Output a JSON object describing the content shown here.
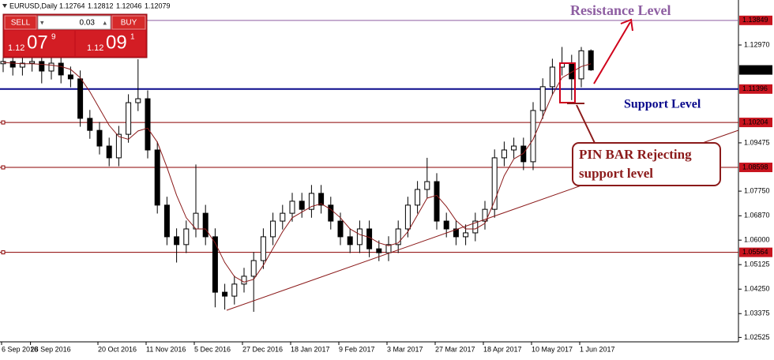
{
  "chart_data": {
    "type": "candlestick",
    "title": "EURUSD,Daily",
    "categories": [
      "6 Sep 2016",
      null,
      null,
      "28 Sep 2016",
      null,
      null,
      null,
      null,
      null,
      null,
      "20 Oct 2016",
      null,
      null,
      null,
      null,
      "11 Nov 2016",
      null,
      null,
      null,
      null,
      "5 Dec 2016",
      null,
      null,
      null,
      null,
      "27 Dec 2016",
      null,
      null,
      null,
      null,
      "18 Jan 2017",
      null,
      null,
      null,
      null,
      "9 Feb 2017",
      null,
      null,
      null,
      null,
      "3 Mar 2017",
      null,
      null,
      null,
      null,
      "27 Mar 2017",
      null,
      null,
      null,
      null,
      "18 Apr 2017",
      null,
      null,
      null,
      null,
      "10 May 2017",
      null,
      null,
      null,
      null,
      "1 Jun 2017",
      null
    ],
    "open": [
      1.123,
      1.1238,
      1.1218,
      1.1232,
      1.1238,
      1.1204,
      1.1232,
      1.119,
      1.1176,
      1.1035,
      1.0992,
      1.0936,
      1.0894,
      1.0978,
      1.1091,
      1.1105,
      1.0922,
      1.0725,
      1.0612,
      1.0584,
      1.064,
      1.0696,
      1.0612,
      1.0414,
      1.04,
      1.0443,
      1.0471,
      1.0527,
      1.0612,
      1.0668,
      1.0696,
      1.0739,
      1.071,
      1.0767,
      1.0725,
      1.0668,
      1.0612,
      1.0584,
      1.064,
      1.0569,
      1.0555,
      1.0584,
      1.064,
      1.0725,
      1.0781,
      1.0809,
      1.0668,
      1.064,
      1.0612,
      1.0626,
      1.0668,
      1.071,
      1.0894,
      1.0922,
      1.0936,
      1.088,
      1.1063,
      1.1148,
      1.1218,
      1.1232,
      1.1176,
      1.12764
    ],
    "high": [
      1.1268,
      1.1268,
      1.1262,
      1.1268,
      1.1268,
      1.1262,
      1.1262,
      1.122,
      1.1206,
      1.1065,
      1.1022,
      1.0966,
      1.1008,
      1.1121,
      1.1246,
      1.1135,
      1.0952,
      1.0755,
      1.0642,
      1.067,
      1.087,
      1.0726,
      1.0642,
      1.0444,
      1.0473,
      1.0501,
      1.0557,
      1.0642,
      1.0698,
      1.0726,
      1.0769,
      1.0769,
      1.0797,
      1.0797,
      1.0755,
      1.0698,
      1.0642,
      1.067,
      1.067,
      1.0599,
      1.0614,
      1.067,
      1.0755,
      1.0811,
      1.0894,
      1.0839,
      1.0698,
      1.067,
      1.0656,
      1.0698,
      1.074,
      1.0924,
      1.0952,
      1.0966,
      1.0966,
      1.1093,
      1.1178,
      1.1248,
      1.129,
      1.1262,
      1.129,
      1.12812
    ],
    "low": [
      1.12,
      1.1188,
      1.1188,
      1.1202,
      1.116,
      1.1174,
      1.116,
      1.1146,
      1.1005,
      1.0962,
      1.0906,
      1.0864,
      1.0864,
      1.0948,
      1.1061,
      1.0892,
      1.0695,
      1.0582,
      1.052,
      1.0554,
      1.061,
      1.0582,
      1.036,
      1.0352,
      1.037,
      1.0413,
      1.0344,
      1.0497,
      1.0582,
      1.0638,
      1.0666,
      1.068,
      1.068,
      1.0695,
      1.0638,
      1.0582,
      1.0554,
      1.0554,
      1.0539,
      1.0525,
      1.0525,
      1.0554,
      1.061,
      1.0695,
      1.0751,
      1.0638,
      1.061,
      1.0582,
      1.0582,
      1.0596,
      1.0638,
      1.068,
      1.0864,
      1.0892,
      1.085,
      1.085,
      1.1033,
      1.1118,
      1.1188,
      1.11,
      1.1146,
      1.12046
    ],
    "close": [
      1.1238,
      1.1218,
      1.1232,
      1.1238,
      1.1204,
      1.1232,
      1.119,
      1.1176,
      1.1035,
      1.0992,
      1.0936,
      1.0894,
      1.0978,
      1.1091,
      1.1105,
      1.0922,
      1.0725,
      1.0612,
      1.0584,
      1.064,
      1.0696,
      1.0612,
      1.0414,
      1.04,
      1.0443,
      1.0471,
      1.0527,
      1.0612,
      1.0668,
      1.0696,
      1.0739,
      1.071,
      1.0767,
      1.0725,
      1.0668,
      1.0612,
      1.0584,
      1.064,
      1.0569,
      1.0555,
      1.0584,
      1.064,
      1.0725,
      1.0781,
      1.0809,
      1.0668,
      1.064,
      1.0612,
      1.0626,
      1.0668,
      1.071,
      1.0894,
      1.0922,
      1.0936,
      1.088,
      1.1063,
      1.1148,
      1.1218,
      1.1232,
      1.1176,
      1.12764,
      1.12079
    ],
    "ma": {
      "color": "#8b1a1a",
      "values": [
        1.1235,
        1.1232,
        1.123,
        1.123,
        1.1228,
        1.1225,
        1.122,
        1.121,
        1.118,
        1.113,
        1.107,
        1.101,
        1.097,
        1.096,
        1.099,
        1.1,
        1.095,
        1.086,
        1.076,
        1.068,
        1.064,
        1.064,
        1.059,
        1.052,
        1.047,
        1.045,
        1.046,
        1.051,
        1.057,
        1.063,
        1.068,
        1.07,
        1.072,
        1.073,
        1.071,
        1.068,
        1.064,
        1.062,
        1.061,
        1.059,
        1.058,
        1.059,
        1.063,
        1.069,
        1.075,
        1.076,
        1.072,
        1.067,
        1.064,
        1.064,
        1.066,
        1.074,
        1.083,
        1.089,
        1.091,
        1.096,
        1.104,
        1.112,
        1.118,
        1.12,
        1.122,
        1.123
      ]
    },
    "ylim": [
      1.02367,
      1.14577
    ],
    "yticks": [
      {
        "value": 1.1297,
        "label": "1.12970"
      },
      1.09475,
      {
        "value": 1.0775,
        "label": "1.07750"
      },
      {
        "value": 1.0687,
        "label": "1.06870"
      },
      {
        "value": 1.06,
        "label": "1.06000"
      },
      1.05125,
      {
        "value": 1.0425,
        "label": "1.04250"
      },
      1.03375,
      1.02525
    ],
    "levels": [
      {
        "value": 1.13849,
        "color": "#8e5ea2"
      },
      {
        "value": 1.11396,
        "color": "#0a0a8c"
      },
      {
        "value": 1.10204,
        "color": "#8b0000"
      },
      {
        "value": 1.08598,
        "color": "#8b0000"
      },
      {
        "value": 1.05564,
        "color": "#8b0000"
      }
    ],
    "annotations": [
      "Resistance Level",
      "Support Level",
      "PIN BAR Rejecting",
      "support level"
    ]
  },
  "trade_panel": {
    "sell": "SELL",
    "buy": "BUY",
    "lot": 0.03,
    "sell_price": [
      "1.12",
      "07",
      "9"
    ],
    "buy_price": [
      "1.12",
      "09",
      "1"
    ]
  }
}
